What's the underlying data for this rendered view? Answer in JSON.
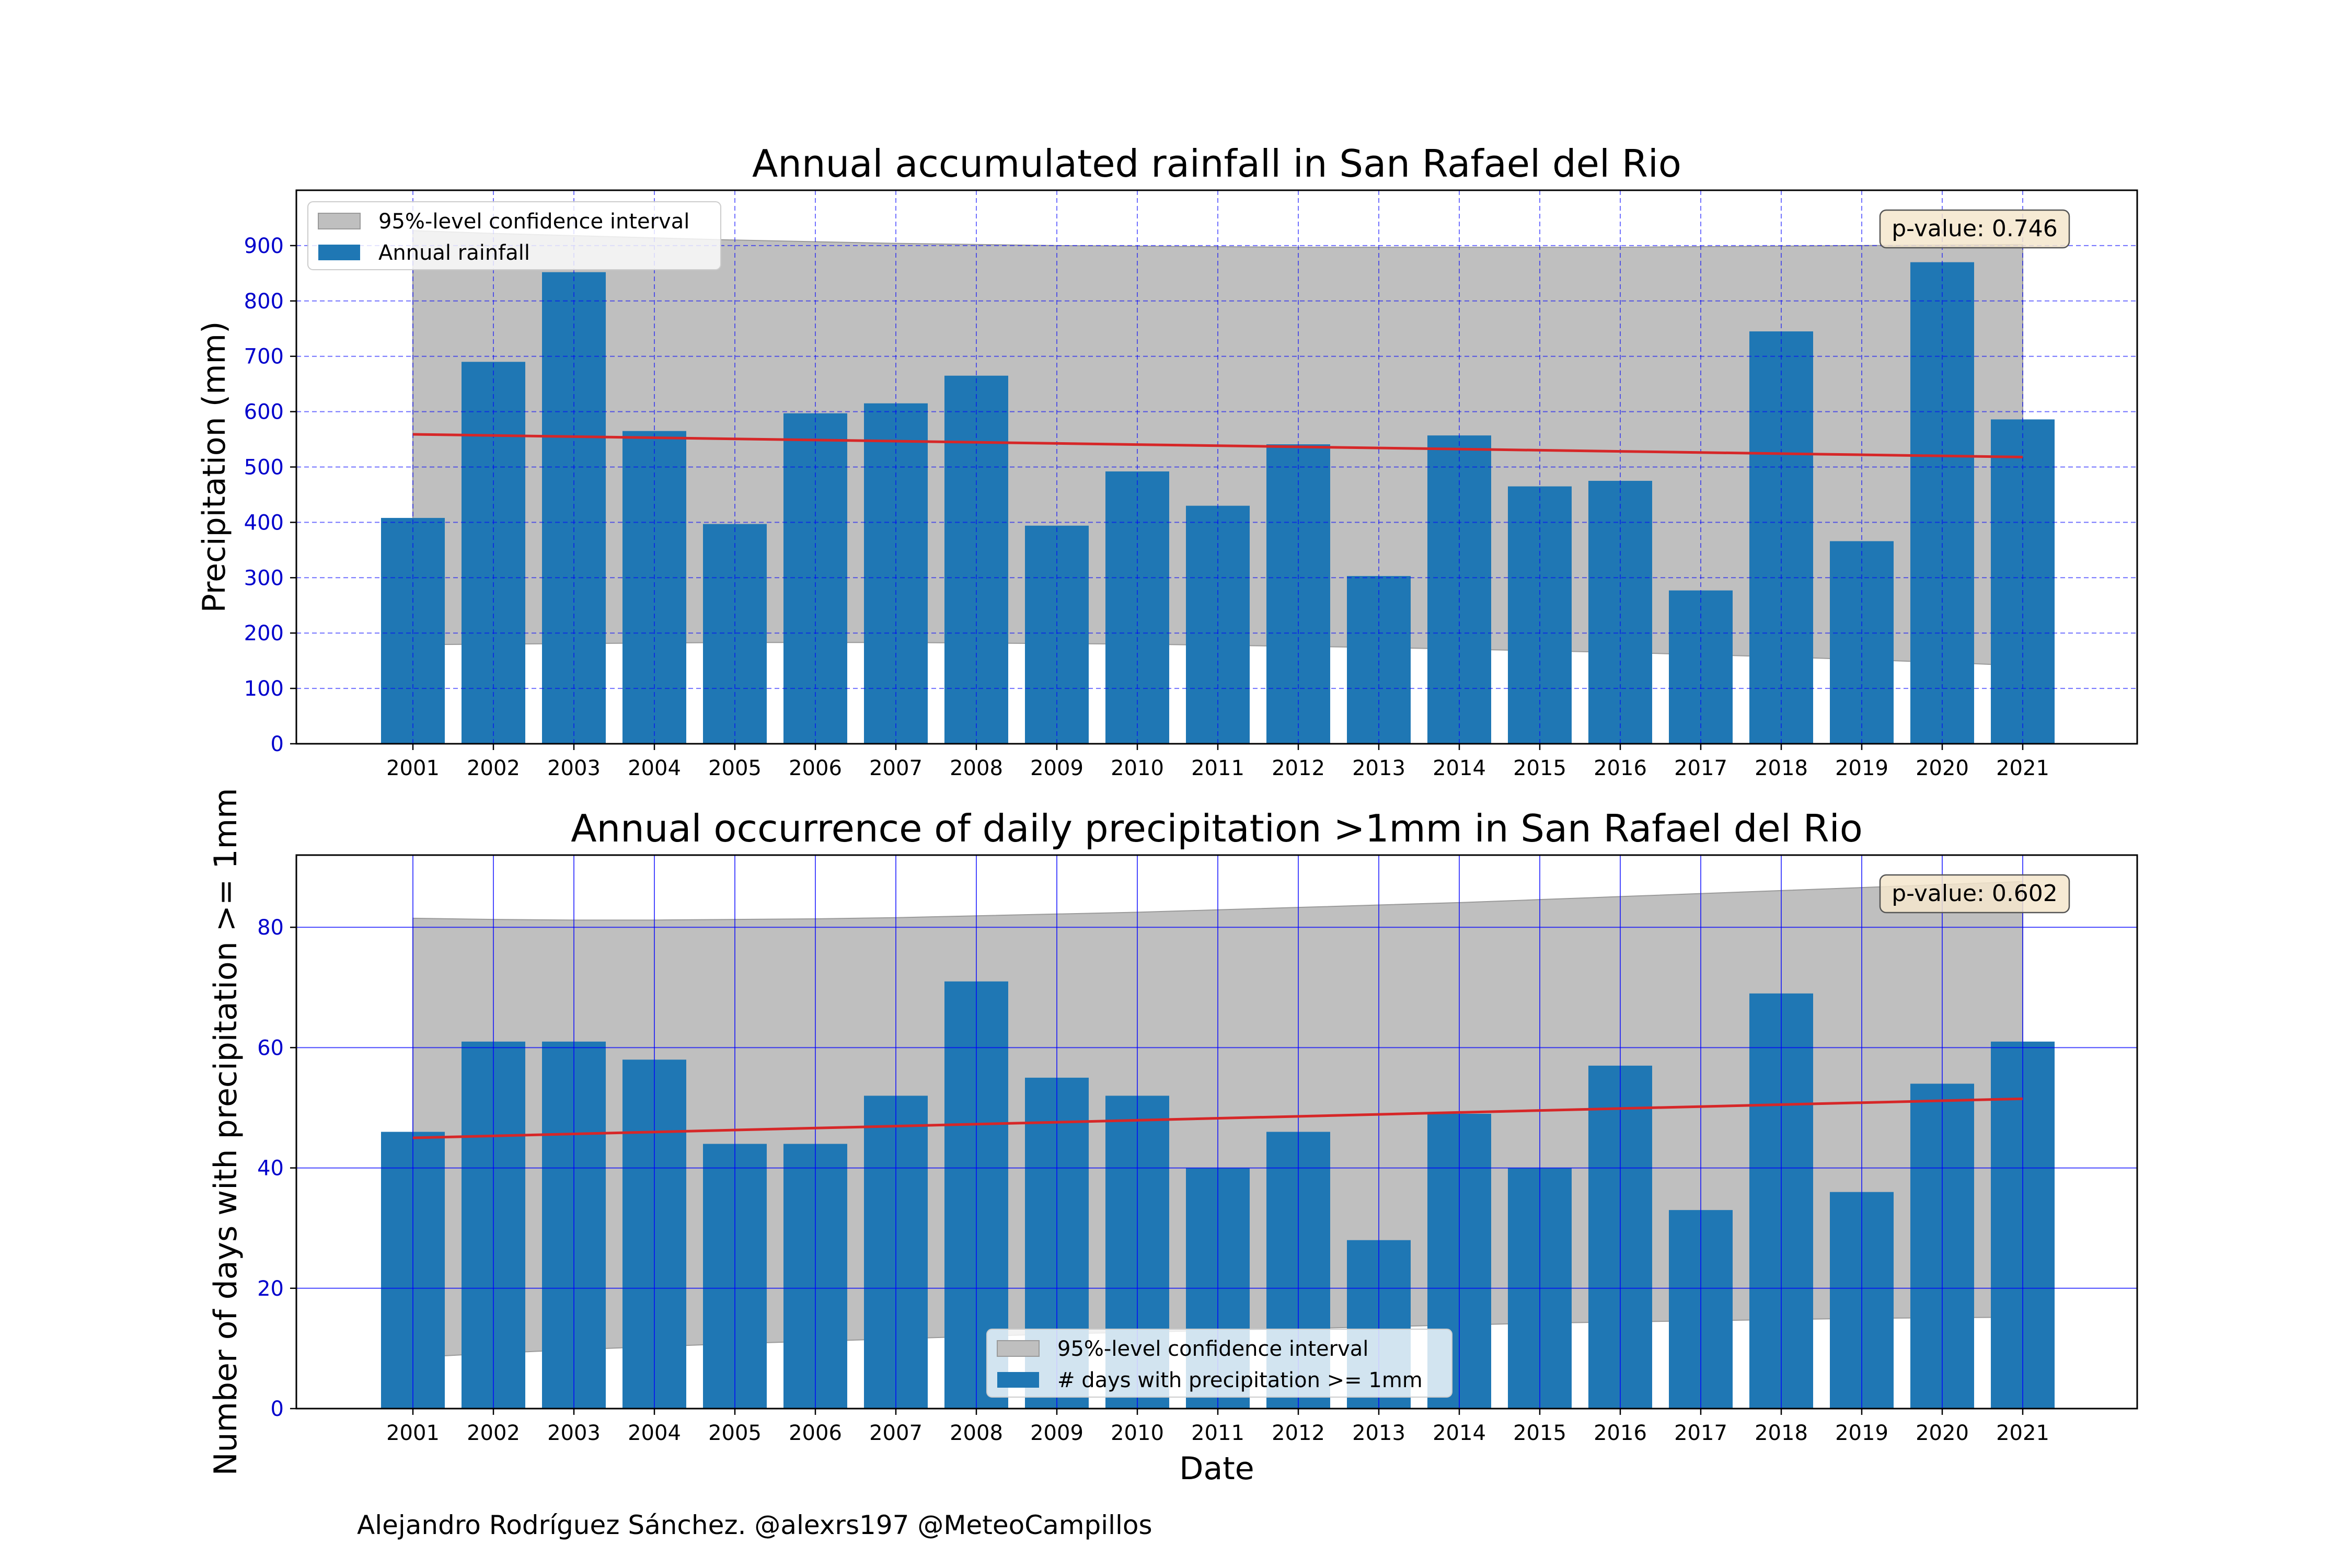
{
  "credit": "Alejandro Rodríguez Sánchez. @alexrs197 @MeteoCampillos",
  "xlabel": "Date",
  "colors": {
    "bar": "#1f77b4",
    "trend": "#d62728",
    "confidence": "#bfbfbf",
    "grid": "#0000ff",
    "tick_text": "#0000cc",
    "pvalue_box": "#f5e6cc"
  },
  "chart_data": [
    {
      "type": "bar",
      "title": "Annual accumulated rainfall in San Rafael  del  Rio",
      "ylabel": "Precipitation (mm)",
      "xlabel": "",
      "ylim": [
        0,
        1000
      ],
      "yticks": [
        0,
        100,
        200,
        300,
        400,
        500,
        600,
        700,
        800,
        900
      ],
      "grid": "dashed",
      "legend_position": "top-left",
      "categories": [
        "2001",
        "2002",
        "2003",
        "2004",
        "2005",
        "2006",
        "2007",
        "2008",
        "2009",
        "2010",
        "2011",
        "2012",
        "2013",
        "2014",
        "2015",
        "2016",
        "2017",
        "2018",
        "2019",
        "2020",
        "2021"
      ],
      "series": [
        {
          "name": "Annual rainfall",
          "values": [
            408,
            690,
            852,
            565,
            397,
            597,
            615,
            665,
            394,
            492,
            430,
            541,
            303,
            557,
            465,
            475,
            277,
            745,
            366,
            870,
            586
          ]
        }
      ],
      "trend": {
        "start": 559,
        "end": 518
      },
      "confidence_band": {
        "name": "95%-level confidence interval",
        "lower": [
          179,
          180,
          181,
          182,
          183,
          183,
          183,
          182,
          181,
          180,
          178,
          176,
          174,
          171,
          168,
          165,
          161,
          157,
          152,
          147,
          141
        ],
        "upper": [
          927,
          922,
          918,
          914,
          910,
          907,
          904,
          902,
          900,
          899,
          898,
          897,
          897,
          897,
          897,
          897,
          898,
          899,
          900,
          901,
          902
        ]
      },
      "pvalue": "p-value: 0.746"
    },
    {
      "type": "bar",
      "title": "Annual occurrence of daily precipitation >1mm in San Rafael  del  Rio",
      "ylabel": "Number of days with precipitation >= 1mm",
      "xlabel": "Date",
      "ylim": [
        0,
        92
      ],
      "yticks": [
        0,
        20,
        40,
        60,
        80
      ],
      "grid": "solid",
      "legend_position": "bottom-center",
      "categories": [
        "2001",
        "2002",
        "2003",
        "2004",
        "2005",
        "2006",
        "2007",
        "2008",
        "2009",
        "2010",
        "2011",
        "2012",
        "2013",
        "2014",
        "2015",
        "2016",
        "2017",
        "2018",
        "2019",
        "2020",
        "2021"
      ],
      "series": [
        {
          "name": "# days with precipitation >= 1mm",
          "values": [
            46,
            61,
            61,
            58,
            44,
            44,
            52,
            71,
            55,
            52,
            40,
            46,
            28,
            49,
            40,
            57,
            33,
            69,
            36,
            54,
            61
          ]
        }
      ],
      "trend": {
        "start": 45,
        "end": 51.5
      },
      "confidence_band": {
        "name": "95%-level confidence interval",
        "lower": [
          8.5,
          9.2,
          9.8,
          10.3,
          10.8,
          11.2,
          11.6,
          12.0,
          12.4,
          12.7,
          13.0,
          13.3,
          13.6,
          13.9,
          14.2,
          14.4,
          14.6,
          14.8,
          15.0,
          15.1,
          15.2
        ],
        "upper": [
          81.5,
          81.3,
          81.2,
          81.2,
          81.3,
          81.4,
          81.6,
          81.9,
          82.2,
          82.5,
          82.9,
          83.3,
          83.7,
          84.1,
          84.6,
          85.1,
          85.6,
          86.1,
          86.6,
          87.1,
          87.6
        ]
      },
      "pvalue": "p-value: 0.602"
    }
  ]
}
